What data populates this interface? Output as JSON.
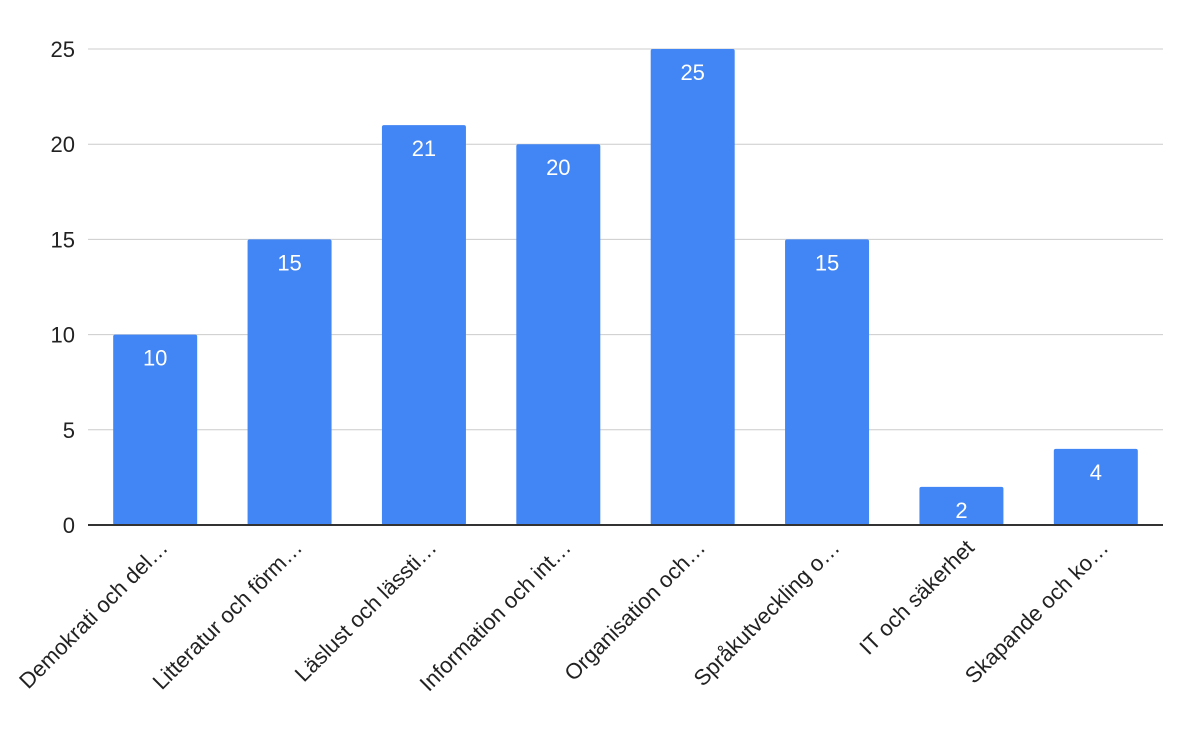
{
  "chart_data": {
    "type": "bar",
    "categories": [
      "Demokrati och del…",
      "Litteratur och förm…",
      "Läslust och lässti…",
      "Information och int…",
      "Organisation och…",
      "Språkutveckling o…",
      "IT och säkerhet",
      "Skapande och ko…"
    ],
    "series": [
      {
        "values": [
          10,
          15,
          21,
          20,
          25,
          15,
          2,
          4
        ]
      }
    ],
    "ylim": [
      0,
      25
    ],
    "yticks": [
      0,
      5,
      10,
      15,
      20,
      25
    ],
    "grid": true,
    "legend": "none",
    "bar_color": "#4285f4",
    "data_labels": true
  }
}
